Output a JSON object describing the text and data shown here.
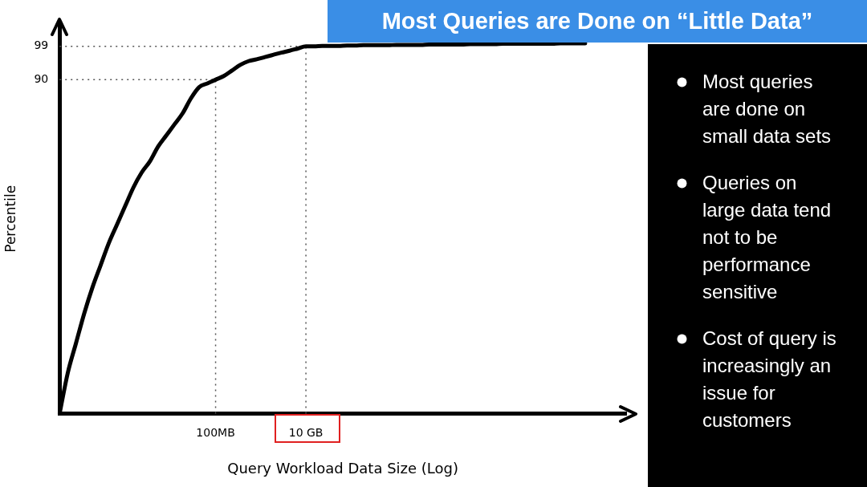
{
  "chart_data": {
    "type": "line",
    "title": "Most Queries are Done on “Little Data”",
    "xlabel": "Query Workload Data Size (Log)",
    "ylabel": "Percentile",
    "categories": [
      null,
      null,
      null,
      null,
      null,
      null,
      null,
      null,
      null,
      null,
      null,
      null,
      null,
      null,
      null,
      null,
      null,
      null,
      null,
      "100MB",
      null,
      null,
      null,
      null,
      null,
      null,
      null,
      null,
      null,
      null,
      "10 GB",
      null,
      null,
      null,
      null,
      null,
      null,
      null,
      null,
      null,
      null,
      null,
      null,
      null,
      null,
      null,
      null,
      null,
      null,
      null,
      null,
      null,
      null,
      null,
      null,
      null,
      null,
      null,
      null,
      null,
      null,
      null,
      null,
      null,
      null,
      null,
      null,
      null,
      null,
      null
    ],
    "series": [
      {
        "color": "#000000",
        "values": [
          0,
          11,
          19,
          27,
          34,
          40,
          46,
          51,
          56,
          61,
          65,
          68,
          72,
          75,
          78,
          81,
          85,
          88,
          89,
          90,
          91,
          92.5,
          94,
          95,
          95.5,
          96.1,
          96.7,
          97.3,
          97.8,
          98.4,
          99,
          99,
          99.1,
          99.1,
          99.1,
          99.2,
          99.2,
          99.3,
          99.3,
          99.3,
          99.3,
          99.4,
          99.4,
          99.4,
          99.4,
          99.5,
          99.5,
          99.5,
          99.5,
          99.5,
          99.6,
          99.6,
          99.6,
          99.6,
          99.7,
          99.7,
          99.7,
          99.7,
          99.7,
          99.7,
          99.7,
          99.8,
          99.8,
          99.8,
          99.8,
          null,
          null,
          null,
          null,
          null
        ]
      }
    ],
    "ylim": [
      0,
      105
    ],
    "yticks": [
      90,
      99
    ],
    "ref_lines": [
      {
        "axis": "y",
        "value": 90,
        "line_style": "dotted",
        "color": "#555555"
      },
      {
        "axis": "y",
        "value": 99,
        "line_style": "dotted",
        "color": "#555555"
      },
      {
        "axis": "x",
        "value": "100MB",
        "line_style": "dotted",
        "color": "#555555"
      },
      {
        "axis": "x",
        "value": "10 GB",
        "line_style": "dotted",
        "color": "#555555"
      }
    ],
    "grid": false,
    "legend": false,
    "marker": "none",
    "line_style": "solid",
    "annotations": [
      "Most queries are done on small data sets",
      "Queries on large data tend not to be performance sensitive",
      "Cost of query is increasingly an issue for customers"
    ]
  }
}
